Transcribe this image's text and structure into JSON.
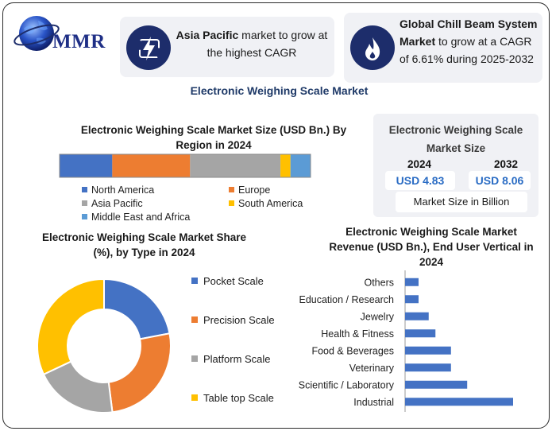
{
  "logo": {
    "text": "MMR"
  },
  "card_a": {
    "bold": "Asia Pacific",
    "text": " market to grow at the highest CAGR"
  },
  "card_b": {
    "bold": "Global Chill Beam System Market",
    "text": " to grow at a CAGR of 6.61% during 2025-2032"
  },
  "main_title": "Electronic Weighing Scale Market",
  "market_size": {
    "title": "Electronic Weighing Scale Market Size",
    "year_a": "2024",
    "year_b": "2032",
    "value_a": "USD 4.83",
    "value_b": "USD 8.06",
    "unit": "Market Size in Billion"
  },
  "colors": {
    "blue": "#4472c4",
    "orange": "#ed7d31",
    "gray": "#a5a5a5",
    "yellow": "#ffc000",
    "lightblue": "#5b9bd5",
    "navy": "#1d2d6b"
  },
  "icons": [
    "globe-icon",
    "lightning-icon",
    "flame-icon"
  ],
  "chart_data": [
    {
      "type": "bar",
      "orientation": "horizontal-stacked",
      "title": "Electronic Weighing Scale Market Size (USD Bn.) By Region in 2024",
      "series": [
        {
          "name": "North America",
          "value": 21,
          "color": "#4472c4"
        },
        {
          "name": "Europe",
          "value": 31,
          "color": "#ed7d31"
        },
        {
          "name": "Asia Pacific",
          "value": 36,
          "color": "#a5a5a5"
        },
        {
          "name": "South America",
          "value": 4,
          "color": "#ffc000"
        },
        {
          "name": "Middle East and Africa",
          "value": 8,
          "color": "#5b9bd5"
        }
      ]
    },
    {
      "type": "pie",
      "variant": "donut",
      "title": "Electronic Weighing Scale Market Share (%), by Type in 2024",
      "slices": [
        {
          "name": "Pocket Scale",
          "value": 22,
          "color": "#4472c4"
        },
        {
          "name": "Precision Scale",
          "value": 26,
          "color": "#ed7d31"
        },
        {
          "name": "Platform Scale",
          "value": 20,
          "color": "#a5a5a5"
        },
        {
          "name": "Table top Scale",
          "value": 32,
          "color": "#ffc000"
        }
      ]
    },
    {
      "type": "bar",
      "orientation": "horizontal",
      "title": "Electronic Weighing Scale Market Revenue (USD Bn.), End User Vertical in 2024",
      "categories": [
        "Others",
        "Education / Research",
        "Jewelry",
        "Health & Fitness",
        "Food & Beverages",
        "Veterinary",
        "Scientific / Laboratory",
        "Industrial"
      ],
      "values": [
        0.2,
        0.2,
        0.35,
        0.45,
        0.68,
        0.68,
        0.92,
        1.6
      ],
      "color": "#4472c4"
    }
  ]
}
